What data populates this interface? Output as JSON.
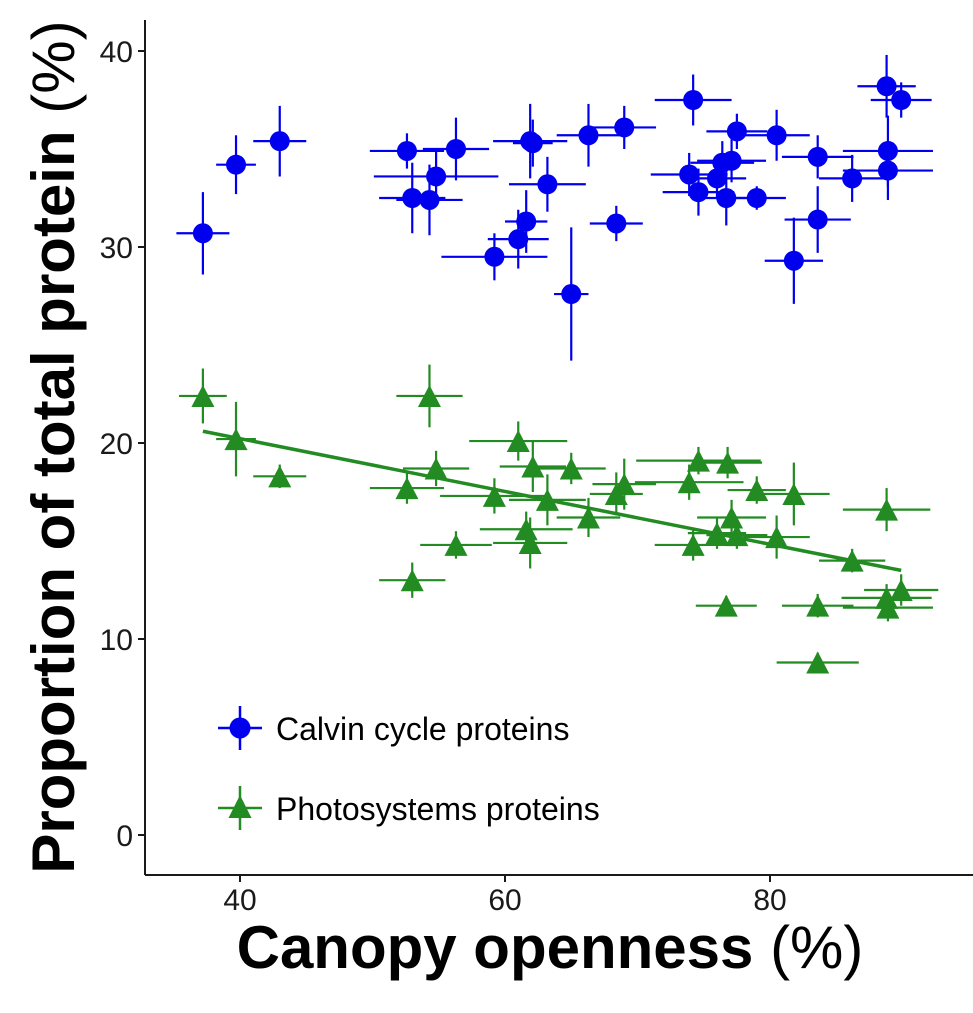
{
  "chart_data": {
    "type": "scatter",
    "xlabel_main": "Canopy openness",
    "xlabel_unit": "(%)",
    "ylabel_main": "Proportion of total protein",
    "ylabel_unit": "(%)",
    "xlim": [
      33,
      103
    ],
    "ylim": [
      -2,
      41.5
    ],
    "x_ticks": [
      40,
      60,
      80
    ],
    "y_ticks": [
      0,
      10,
      20,
      30,
      40
    ],
    "grid": false,
    "legend_position": "bottom-left",
    "series": [
      {
        "name": "Calvin cycle proteins",
        "marker": "circle",
        "color": "#0000ee",
        "points": [
          {
            "x": 37.2,
            "y": 30.7,
            "xerr": 2.0,
            "yerr": 2.1
          },
          {
            "x": 39.7,
            "y": 34.2,
            "xerr": 1.5,
            "yerr": 1.5
          },
          {
            "x": 43.0,
            "y": 35.4,
            "xerr": 2.0,
            "yerr": 1.8
          },
          {
            "x": 52.6,
            "y": 34.9,
            "xerr": 2.8,
            "yerr": 0.9
          },
          {
            "x": 53.0,
            "y": 32.5,
            "xerr": 2.5,
            "yerr": 1.8
          },
          {
            "x": 54.3,
            "y": 32.4,
            "xerr": 2.5,
            "yerr": 1.8
          },
          {
            "x": 54.8,
            "y": 33.6,
            "xerr": 4.7,
            "yerr": 1.4
          },
          {
            "x": 56.3,
            "y": 35.0,
            "xerr": 2.5,
            "yerr": 1.6
          },
          {
            "x": 59.2,
            "y": 29.5,
            "xerr": 4.0,
            "yerr": 1.2
          },
          {
            "x": 61.0,
            "y": 30.4,
            "xerr": 2.3,
            "yerr": 1.5
          },
          {
            "x": 61.6,
            "y": 31.3,
            "xerr": 1.6,
            "yerr": 1.6
          },
          {
            "x": 61.9,
            "y": 35.4,
            "xerr": 2.8,
            "yerr": 1.9
          },
          {
            "x": 62.1,
            "y": 35.3,
            "xerr": 1.5,
            "yerr": 1.2
          },
          {
            "x": 63.2,
            "y": 33.2,
            "xerr": 2.9,
            "yerr": 1.4
          },
          {
            "x": 65.0,
            "y": 27.6,
            "xerr": 1.3,
            "yerr": 3.4
          },
          {
            "x": 66.3,
            "y": 35.7,
            "xerr": 2.4,
            "yerr": 1.6
          },
          {
            "x": 68.4,
            "y": 31.2,
            "xerr": 2.0,
            "yerr": 0.9
          },
          {
            "x": 69.0,
            "y": 36.1,
            "xerr": 2.4,
            "yerr": 1.1
          },
          {
            "x": 73.9,
            "y": 33.7,
            "xerr": 2.9,
            "yerr": 1.1
          },
          {
            "x": 74.2,
            "y": 37.5,
            "xerr": 2.9,
            "yerr": 1.3
          },
          {
            "x": 74.6,
            "y": 32.8,
            "xerr": 2.7,
            "yerr": 1.2
          },
          {
            "x": 76.0,
            "y": 33.5,
            "xerr": 2.2,
            "yerr": 1.0
          },
          {
            "x": 76.4,
            "y": 34.3,
            "xerr": 2.4,
            "yerr": 1.1
          },
          {
            "x": 76.7,
            "y": 32.5,
            "xerr": 2.3,
            "yerr": 1.4
          },
          {
            "x": 77.1,
            "y": 34.4,
            "xerr": 2.6,
            "yerr": 1.1
          },
          {
            "x": 77.5,
            "y": 35.9,
            "xerr": 2.3,
            "yerr": 0.9
          },
          {
            "x": 79.0,
            "y": 32.5,
            "xerr": 2.2,
            "yerr": 0.6
          },
          {
            "x": 80.5,
            "y": 35.7,
            "xerr": 2.5,
            "yerr": 1.3
          },
          {
            "x": 81.8,
            "y": 29.3,
            "xerr": 2.2,
            "yerr": 2.2
          },
          {
            "x": 83.6,
            "y": 34.6,
            "xerr": 2.7,
            "yerr": 1.1
          },
          {
            "x": 83.6,
            "y": 31.4,
            "xerr": 2.5,
            "yerr": 1.7
          },
          {
            "x": 86.2,
            "y": 33.5,
            "xerr": 2.5,
            "yerr": 1.2
          },
          {
            "x": 88.8,
            "y": 38.2,
            "xerr": 2.2,
            "yerr": 1.6
          },
          {
            "x": 88.9,
            "y": 34.9,
            "xerr": 3.4,
            "yerr": 1.8
          },
          {
            "x": 88.9,
            "y": 33.9,
            "xerr": 3.4,
            "yerr": 1.5
          },
          {
            "x": 89.9,
            "y": 37.5,
            "xerr": 2.3,
            "yerr": 0.9
          }
        ]
      },
      {
        "name": "Photosystems proteins",
        "marker": "triangle",
        "color": "#228b22",
        "points": [
          {
            "x": 37.2,
            "y": 22.4,
            "xerr": 1.8,
            "yerr": 1.4
          },
          {
            "x": 39.7,
            "y": 20.2,
            "xerr": 1.5,
            "yerr": 1.9
          },
          {
            "x": 43.0,
            "y": 18.3,
            "xerr": 2.0,
            "yerr": 0.6
          },
          {
            "x": 52.6,
            "y": 17.7,
            "xerr": 2.8,
            "yerr": 0.8
          },
          {
            "x": 53.0,
            "y": 13.0,
            "xerr": 2.5,
            "yerr": 0.9
          },
          {
            "x": 54.3,
            "y": 22.4,
            "xerr": 2.5,
            "yerr": 1.6
          },
          {
            "x": 54.8,
            "y": 18.7,
            "xerr": 2.5,
            "yerr": 0.9
          },
          {
            "x": 56.3,
            "y": 14.8,
            "xerr": 2.7,
            "yerr": 0.7
          },
          {
            "x": 59.2,
            "y": 17.3,
            "xerr": 4.1,
            "yerr": 0.9
          },
          {
            "x": 61.0,
            "y": 20.1,
            "xerr": 3.7,
            "yerr": 1.0
          },
          {
            "x": 61.6,
            "y": 15.6,
            "xerr": 3.5,
            "yerr": 0.9
          },
          {
            "x": 61.9,
            "y": 14.9,
            "xerr": 2.8,
            "yerr": 1.3
          },
          {
            "x": 62.1,
            "y": 18.8,
            "xerr": 2.5,
            "yerr": 1.3
          },
          {
            "x": 63.2,
            "y": 17.1,
            "xerr": 2.9,
            "yerr": 1.3
          },
          {
            "x": 65.0,
            "y": 18.7,
            "xerr": 2.6,
            "yerr": 0.8
          },
          {
            "x": 66.3,
            "y": 16.2,
            "xerr": 2.4,
            "yerr": 1.0
          },
          {
            "x": 68.4,
            "y": 17.4,
            "xerr": 2.0,
            "yerr": 1.1
          },
          {
            "x": 69.0,
            "y": 17.9,
            "xerr": 2.4,
            "yerr": 1.3
          },
          {
            "x": 73.9,
            "y": 18.0,
            "xerr": 4.1,
            "yerr": 0.9
          },
          {
            "x": 74.2,
            "y": 14.8,
            "xerr": 2.9,
            "yerr": 0.8
          },
          {
            "x": 74.6,
            "y": 19.1,
            "xerr": 4.7,
            "yerr": 0.7
          },
          {
            "x": 76.0,
            "y": 15.4,
            "xerr": 2.2,
            "yerr": 0.8
          },
          {
            "x": 76.7,
            "y": 11.7,
            "xerr": 2.3,
            "yerr": 0.5
          },
          {
            "x": 76.8,
            "y": 19.0,
            "xerr": 2.6,
            "yerr": 0.8
          },
          {
            "x": 77.1,
            "y": 16.2,
            "xerr": 2.6,
            "yerr": 0.9
          },
          {
            "x": 77.5,
            "y": 15.3,
            "xerr": 2.3,
            "yerr": 0.7
          },
          {
            "x": 79.0,
            "y": 17.6,
            "xerr": 2.2,
            "yerr": 0.7
          },
          {
            "x": 80.5,
            "y": 15.2,
            "xerr": 2.5,
            "yerr": 1.1
          },
          {
            "x": 81.8,
            "y": 17.4,
            "xerr": 2.7,
            "yerr": 1.6
          },
          {
            "x": 83.6,
            "y": 11.7,
            "xerr": 2.7,
            "yerr": 0.6
          },
          {
            "x": 83.6,
            "y": 8.8,
            "xerr": 3.1,
            "yerr": 0.5
          },
          {
            "x": 86.2,
            "y": 14.0,
            "xerr": 2.5,
            "yerr": 0.6
          },
          {
            "x": 88.8,
            "y": 16.6,
            "xerr": 3.3,
            "yerr": 1.1
          },
          {
            "x": 88.8,
            "y": 12.1,
            "xerr": 3.4,
            "yerr": 0.7
          },
          {
            "x": 88.9,
            "y": 11.6,
            "xerr": 3.4,
            "yerr": 0.7
          },
          {
            "x": 89.9,
            "y": 12.5,
            "xerr": 2.8,
            "yerr": 0.8
          }
        ]
      }
    ],
    "trend_line": {
      "series": "Photosystems proteins",
      "x": [
        37.2,
        89.9
      ],
      "y": [
        20.6,
        13.5
      ]
    }
  }
}
